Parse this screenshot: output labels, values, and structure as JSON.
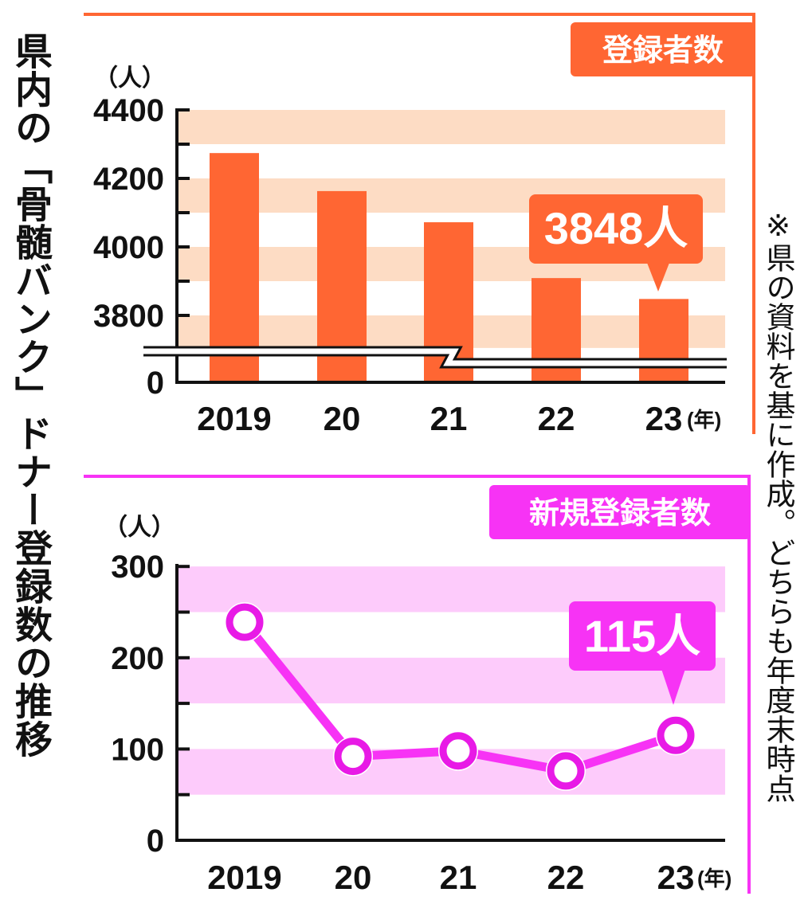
{
  "title": "県内の「骨髄バンク」ドナー登録数の推移",
  "note": "※県の資料を基に作成。どちらも年度末時点",
  "colors": {
    "registered": "#ff6633",
    "registered_band": "#fddcc4",
    "new": "#f733f5",
    "new_band": "#fdcbfb"
  },
  "chart_data": [
    {
      "type": "bar",
      "title": "登録者数",
      "ylabel": "（人）",
      "xunit": "(年)",
      "categories": [
        "2019",
        "20",
        "21",
        "22",
        "23"
      ],
      "values": [
        4274,
        4163,
        4072,
        3909,
        3848
      ],
      "yticks": [
        "4400",
        "4200",
        "4000",
        "3800",
        "0"
      ],
      "ylim": [
        0,
        4400
      ],
      "axis_break": true,
      "callout": {
        "category": "23",
        "text": "3848人"
      }
    },
    {
      "type": "line",
      "title": "新規登録者数",
      "ylabel": "（人）",
      "xunit": "(年)",
      "categories": [
        "2019",
        "20",
        "21",
        "22",
        "23"
      ],
      "values": [
        239,
        92,
        98,
        76,
        115
      ],
      "yticks": [
        "300",
        "200",
        "100",
        "0"
      ],
      "ylim": [
        0,
        300
      ],
      "callout": {
        "category": "23",
        "text": "115人"
      }
    }
  ]
}
